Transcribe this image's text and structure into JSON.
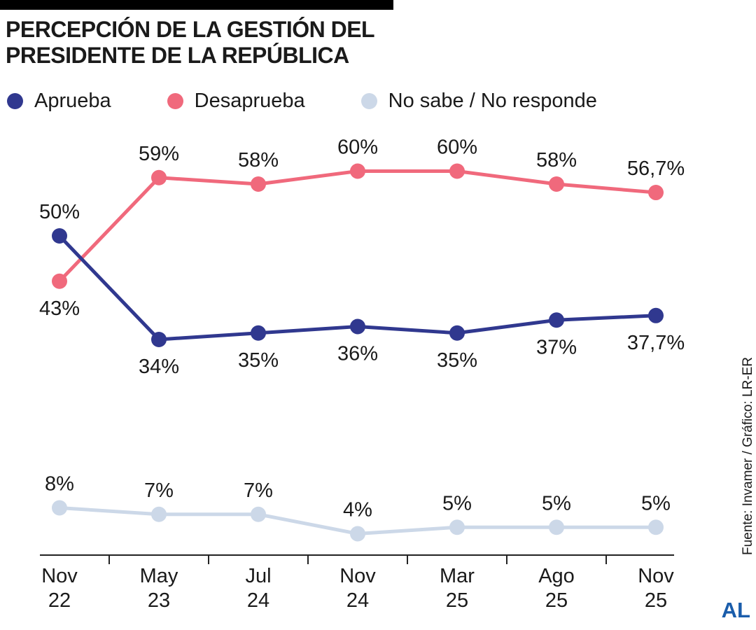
{
  "header": {
    "top_bar_color": "#000000",
    "title_line1": "PERCEPCIÓN DE LA GESTIÓN DEL",
    "title_line2": "PRESIDENTE DE LA REPÚBLICA"
  },
  "legend": [
    {
      "label": "Aprueba",
      "color": "#30388f"
    },
    {
      "label": "Desaprueba",
      "color": "#f0697c"
    },
    {
      "label": "No sabe / No responde",
      "color": "#ccd8e8"
    }
  ],
  "chart_data": {
    "type": "line",
    "title": "Percepción de la gestión del Presidente de la República",
    "categories": [
      [
        "Nov",
        "22"
      ],
      [
        "May",
        "23"
      ],
      [
        "Jul",
        "24"
      ],
      [
        "Nov",
        "24"
      ],
      [
        "Mar",
        "25"
      ],
      [
        "Ago",
        "25"
      ],
      [
        "Nov",
        "25"
      ]
    ],
    "series": [
      {
        "name": "Aprueba",
        "color": "#30388f",
        "values": [
          50,
          34,
          35,
          36,
          35,
          37,
          37.7
        ],
        "labels": [
          "50%",
          "34%",
          "35%",
          "36%",
          "35%",
          "37%",
          "37,7%"
        ],
        "label_sides": [
          "above",
          "below",
          "below",
          "below",
          "below",
          "below",
          "below"
        ]
      },
      {
        "name": "Desaprueba",
        "color": "#f0697c",
        "values": [
          43,
          59,
          58,
          60,
          60,
          58,
          56.7
        ],
        "labels": [
          "43%",
          "59%",
          "58%",
          "60%",
          "60%",
          "58%",
          "56,7%"
        ],
        "label_sides": [
          "below",
          "above",
          "above",
          "above",
          "above",
          "above",
          "above"
        ]
      },
      {
        "name": "No sabe / No responde",
        "color": "#ccd8e8",
        "values": [
          8,
          7,
          7,
          4,
          5,
          5,
          5
        ],
        "labels": [
          "8%",
          "7%",
          "7%",
          "4%",
          "5%",
          "5%",
          "5%"
        ],
        "label_sides": [
          "above",
          "above",
          "above",
          "above",
          "above",
          "above",
          "above"
        ]
      }
    ],
    "ylim": [
      0,
      65
    ],
    "grid": false,
    "legend_position": "top",
    "xlabel": "",
    "ylabel": ""
  },
  "source": "Fuente: Invamer / Gráfico: LR-ER",
  "logo": {
    "text": "AL",
    "color": "#1a5dab"
  }
}
